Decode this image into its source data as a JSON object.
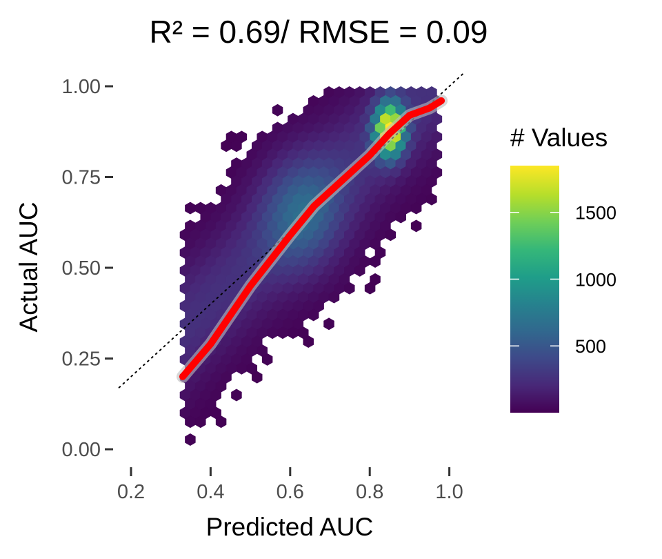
{
  "chart_data": {
    "type": "hexbin",
    "title": "R² = 0.69/ RMSE = 0.09",
    "xlabel": "Predicted AUC",
    "ylabel": "Actual AUC",
    "xlim": [
      0.17,
      1.05
    ],
    "ylim": [
      -0.05,
      1.04
    ],
    "x_ticks": [
      0.2,
      0.4,
      0.6,
      0.8,
      1.0
    ],
    "x_tick_labels": [
      "0.2",
      "0.4",
      "0.6",
      "0.8",
      "1.0"
    ],
    "y_ticks": [
      0.0,
      0.25,
      0.5,
      0.75,
      1.0
    ],
    "y_tick_labels": [
      "0.00",
      "0.25",
      "0.50",
      "0.75",
      "1.00"
    ],
    "grid": false,
    "reference_line": {
      "style": "dotted",
      "color": "#000000",
      "slope": 1,
      "intercept": 0,
      "x_range": [
        0.17,
        1.04
      ]
    },
    "smooth_line": {
      "color": "#ff0000",
      "x": [
        0.33,
        0.4,
        0.5,
        0.6,
        0.66,
        0.7,
        0.75,
        0.8,
        0.85,
        0.9,
        0.95,
        0.98
      ],
      "y": [
        0.2,
        0.29,
        0.45,
        0.59,
        0.67,
        0.71,
        0.76,
        0.81,
        0.87,
        0.92,
        0.94,
        0.96
      ]
    },
    "density_model": {
      "main_ridge": {
        "intercept": -0.02,
        "slope": 1.06,
        "spread": 0.125
      },
      "hotspot": {
        "x": 0.85,
        "y": 0.88,
        "peak": 1850
      },
      "mid_blob": {
        "x": 0.63,
        "y": 0.65,
        "peak": 420
      }
    },
    "legend": {
      "title": "# Values",
      "position": "right",
      "range": [
        0,
        1850
      ],
      "ticks": [
        500,
        1000,
        1500
      ],
      "tick_labels": [
        "500",
        "1000",
        "1500"
      ],
      "colors": [
        "#440154",
        "#482878",
        "#3e4989",
        "#31688e",
        "#26828e",
        "#1f9e89",
        "#35b779",
        "#6ece58",
        "#b5de2b",
        "#fde725"
      ]
    }
  }
}
